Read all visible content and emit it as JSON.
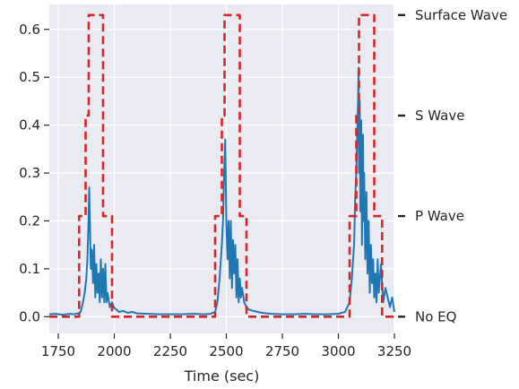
{
  "chart_data": {
    "type": "line",
    "xlabel": "Time (sec)",
    "ylabel": "",
    "xlim": [
      1710,
      3250
    ],
    "ylim": [
      -0.035,
      0.652
    ],
    "x_ticks": [
      1750,
      2000,
      2250,
      2500,
      2750,
      3000,
      3250
    ],
    "x_tick_labels": [
      "1750",
      "2000",
      "2250",
      "2500",
      "2750",
      "3000",
      "3250"
    ],
    "y_ticks": [
      0.0,
      0.1,
      0.2,
      0.3,
      0.4,
      0.5,
      0.6
    ],
    "y_tick_labels": [
      "0.0",
      "0.1",
      "0.2",
      "0.3",
      "0.4",
      "0.5",
      "0.6"
    ],
    "right_ticks": [
      0.0,
      0.21,
      0.42,
      0.63
    ],
    "right_tick_labels": [
      "No EQ",
      "P Wave",
      "S Wave",
      "Surface Wave"
    ],
    "grid": true,
    "background": "#eaeaf2",
    "series": [
      {
        "style": "solid",
        "color": "#1f77b4",
        "x": [
          1710,
          1740,
          1770,
          1800,
          1820,
          1840,
          1850,
          1860,
          1868,
          1875,
          1880,
          1885,
          1888,
          1892,
          1895,
          1900,
          1905,
          1910,
          1915,
          1920,
          1925,
          1930,
          1935,
          1940,
          1945,
          1950,
          1955,
          1960,
          1965,
          1970,
          1980,
          1990,
          2000,
          2010,
          2020,
          2040,
          2060,
          2080,
          2100,
          2150,
          2200,
          2250,
          2300,
          2350,
          2400,
          2430,
          2450,
          2460,
          2470,
          2480,
          2485,
          2490,
          2495,
          2500,
          2505,
          2510,
          2515,
          2520,
          2525,
          2530,
          2535,
          2540,
          2545,
          2550,
          2555,
          2560,
          2565,
          2570,
          2580,
          2590,
          2600,
          2620,
          2640,
          2660,
          2680,
          2700,
          2750,
          2800,
          2850,
          2900,
          2950,
          3000,
          3030,
          3050,
          3060,
          3070,
          3075,
          3080,
          3085,
          3088,
          3090,
          3092,
          3095,
          3098,
          3100,
          3102,
          3105,
          3110,
          3112,
          3115,
          3120,
          3125,
          3130,
          3135,
          3140,
          3145,
          3150,
          3155,
          3160,
          3165,
          3170,
          3175,
          3180,
          3190,
          3200,
          3210,
          3220,
          3230,
          3240,
          3250
        ],
        "y": [
          0.005,
          0.006,
          0.004,
          0.006,
          0.005,
          0.007,
          0.01,
          0.03,
          0.05,
          0.08,
          0.12,
          0.2,
          0.27,
          0.18,
          0.1,
          0.14,
          0.07,
          0.15,
          0.04,
          0.11,
          0.05,
          0.09,
          0.03,
          0.12,
          0.04,
          0.1,
          0.03,
          0.11,
          0.03,
          0.05,
          0.02,
          0.03,
          0.018,
          0.015,
          0.01,
          0.012,
          0.008,
          0.01,
          0.007,
          0.006,
          0.005,
          0.005,
          0.005,
          0.006,
          0.005,
          0.006,
          0.01,
          0.03,
          0.08,
          0.15,
          0.2,
          0.3,
          0.37,
          0.2,
          0.12,
          0.2,
          0.08,
          0.2,
          0.06,
          0.16,
          0.09,
          0.15,
          0.04,
          0.12,
          0.03,
          0.08,
          0.04,
          0.06,
          0.03,
          0.02,
          0.015,
          0.012,
          0.01,
          0.008,
          0.007,
          0.006,
          0.005,
          0.005,
          0.006,
          0.005,
          0.005,
          0.006,
          0.01,
          0.03,
          0.08,
          0.15,
          0.25,
          0.3,
          0.4,
          0.45,
          0.52,
          0.3,
          0.45,
          0.22,
          0.35,
          0.41,
          0.15,
          0.38,
          0.2,
          0.3,
          0.12,
          0.26,
          0.09,
          0.2,
          0.05,
          0.15,
          0.07,
          0.12,
          0.04,
          0.09,
          0.03,
          0.12,
          0.05,
          0.11,
          0.03,
          0.06,
          0.04,
          0.02,
          0.04,
          0.01
        ]
      },
      {
        "style": "dashed",
        "color": "#d62728",
        "x": [
          1710,
          1843,
          1843,
          1872,
          1872,
          1886,
          1886,
          1950,
          1950,
          1990,
          1990,
          2450,
          2450,
          2480,
          2480,
          2492,
          2492,
          2560,
          2560,
          2590,
          2590,
          3050,
          3050,
          3080,
          3080,
          3092,
          3092,
          3160,
          3160,
          3195,
          3195,
          3250
        ],
        "y": [
          0,
          0,
          0.21,
          0.21,
          0.42,
          0.42,
          0.63,
          0.63,
          0.21,
          0.21,
          0,
          0,
          0.21,
          0.21,
          0.42,
          0.42,
          0.63,
          0.63,
          0.21,
          0.21,
          0,
          0,
          0.21,
          0.21,
          0.42,
          0.42,
          0.63,
          0.63,
          0.21,
          0.21,
          0,
          0
        ]
      }
    ]
  }
}
